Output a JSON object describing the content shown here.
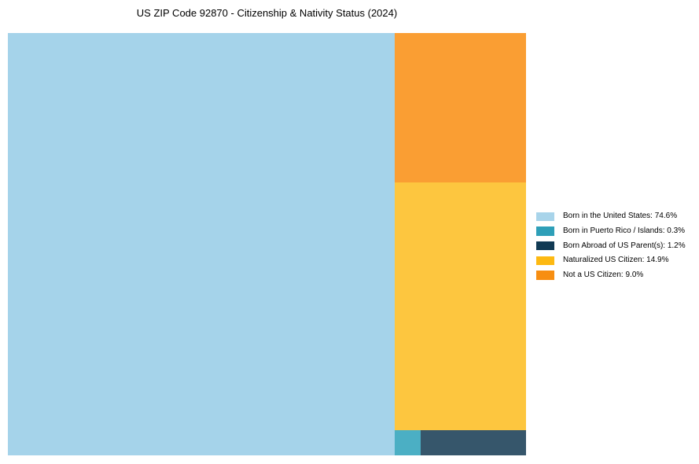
{
  "title": "US ZIP Code 92870 - Citizenship & Nativity Status (2024)",
  "chart_data": {
    "type": "treemap",
    "title": "US ZIP Code 92870 - Citizenship & Nativity Status (2024)",
    "categories": [
      "Born in the United States",
      "Born in Puerto Rico / Islands",
      "Born Abroad of US Parent(s)",
      "Naturalized US Citizen",
      "Not a US Citizen"
    ],
    "values": [
      74.6,
      0.3,
      1.2,
      14.9,
      9.0
    ],
    "unit": "%",
    "legend_labels": [
      "Born in the United States: 74.6%",
      "Born in Puerto Rico / Islands: 0.3%",
      "Born Abroad of US Parent(s): 1.2%",
      "Naturalized US Citizen: 14.9%",
      "Not a US Citizen: 9.0%"
    ],
    "legend_colors": [
      "#A8D4EA",
      "#2E9FB8",
      "#113A54",
      "#FDB912",
      "#F78E11"
    ],
    "tile_colors": [
      "#A5D3EA",
      "#4BAFC4",
      "#36566B",
      "#FDC63F",
      "#FA9E33"
    ],
    "legend_position": "right"
  }
}
